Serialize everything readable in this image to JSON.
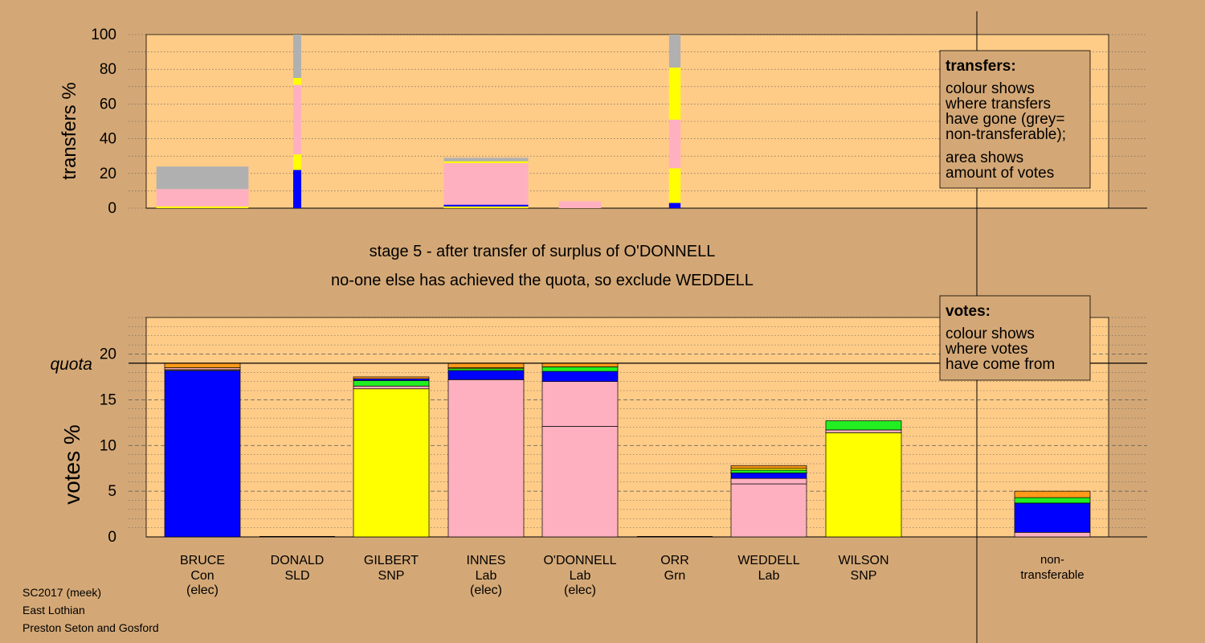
{
  "colors": {
    "background": "#d4a876",
    "panel": "#ffcc88",
    "Con": "#0000ff",
    "SNP": "#ffff00",
    "Lab": "#ffb0c0",
    "SLD": "#ff9a1a",
    "Grn": "#22ee22",
    "nontransferable": "#b0b0b0"
  },
  "stage": {
    "line1": "stage 5 - after transfer of surplus of O'DONNELL",
    "line2": "no-one else has achieved the quota, so exclude WEDDELL"
  },
  "legend_transfers": {
    "title": "transfers:",
    "lines": [
      "colour shows",
      "where transfers",
      "have gone (grey=",
      "non-transferable);"
    ],
    "lines2": [
      "area shows",
      "amount of votes"
    ]
  },
  "legend_votes": {
    "title": "votes:",
    "lines": [
      "colour shows",
      "where votes",
      "have come from"
    ]
  },
  "footer": [
    "SC2017 (meek)",
    "East Lothian",
    "Preston Seton and Gosford"
  ],
  "chart_data": [
    {
      "type": "bar",
      "stacked": true,
      "ylabel": "transfers %",
      "ylim": [
        0,
        100
      ],
      "yticks": [
        0,
        20,
        40,
        60,
        80,
        100
      ],
      "grid": true,
      "legend_position": "top-right",
      "bars": [
        {
          "candidate": "BRUCE",
          "width_share": 0.24,
          "segments": [
            {
              "party": "SNP",
              "value": 1
            },
            {
              "party": "Lab",
              "value": 10
            },
            {
              "party": "nontransferable",
              "value": 13
            }
          ]
        },
        {
          "candidate": "DONALD",
          "width_share": 0.02,
          "segments": [
            {
              "party": "Con",
              "value": 22
            },
            {
              "party": "SNP",
              "value": 9
            },
            {
              "party": "Lab",
              "value": 40
            },
            {
              "party": "SNP",
              "value": 4
            },
            {
              "party": "nontransferable",
              "value": 25
            }
          ]
        },
        {
          "candidate": "INNES",
          "width_share": 0.22,
          "segments": [
            {
              "party": "SNP",
              "value": 1
            },
            {
              "party": "Con",
              "value": 1
            },
            {
              "party": "Lab",
              "value": 24
            },
            {
              "party": "SNP",
              "value": 1
            },
            {
              "party": "nontransferable",
              "value": 2
            }
          ]
        },
        {
          "candidate": "O'DONNELL",
          "width_share": 0.11,
          "segments": [
            {
              "party": "Lab",
              "value": 4
            }
          ]
        },
        {
          "candidate": "ORR",
          "width_share": 0.03,
          "segments": [
            {
              "party": "Con",
              "value": 3
            },
            {
              "party": "SNP",
              "value": 20
            },
            {
              "party": "Lab",
              "value": 28
            },
            {
              "party": "SNP",
              "value": 30
            },
            {
              "party": "nontransferable",
              "value": 19
            }
          ]
        }
      ]
    },
    {
      "type": "bar",
      "stacked": true,
      "ylabel": "votes %",
      "ylim": [
        0,
        24
      ],
      "yticks": [
        0,
        5,
        10,
        15,
        20
      ],
      "quota": 19,
      "quota_label": "quota",
      "grid": true,
      "legend_position": "top-right",
      "categories": [
        {
          "name": "BRUCE",
          "party": "Con",
          "status": "(elec)"
        },
        {
          "name": "DONALD",
          "party": "SLD",
          "status": ""
        },
        {
          "name": "GILBERT",
          "party": "SNP",
          "status": ""
        },
        {
          "name": "INNES",
          "party": "Lab",
          "status": "(elec)"
        },
        {
          "name": "O'DONNELL",
          "party": "Lab",
          "status": "(elec)"
        },
        {
          "name": "ORR",
          "party": "Grn",
          "status": ""
        },
        {
          "name": "WEDDELL",
          "party": "Lab",
          "status": ""
        },
        {
          "name": "WILSON",
          "party": "SNP",
          "status": ""
        }
      ],
      "nontransferable_label": [
        "non-",
        "transferable"
      ],
      "bars": [
        {
          "candidate": "BRUCE",
          "segments": [
            {
              "party": "Con",
              "value": 18.2
            },
            {
              "party": "SNP",
              "value": 0.1
            },
            {
              "party": "Lab",
              "value": 0.2
            },
            {
              "party": "SLD",
              "value": 0.5
            }
          ]
        },
        {
          "candidate": "DONALD",
          "segments": []
        },
        {
          "candidate": "GILBERT",
          "segments": [
            {
              "party": "SNP",
              "value": 16.2
            },
            {
              "party": "Lab",
              "value": 0.3
            },
            {
              "party": "Grn",
              "value": 0.6
            },
            {
              "party": "Con",
              "value": 0.2
            },
            {
              "party": "SLD",
              "value": 0.2
            }
          ]
        },
        {
          "candidate": "INNES",
          "segments": [
            {
              "party": "Lab",
              "value": 17.2
            },
            {
              "party": "Con",
              "value": 1.0
            },
            {
              "party": "Grn",
              "value": 0.2
            },
            {
              "party": "SNP",
              "value": 0.1
            },
            {
              "party": "SLD",
              "value": 0.5
            }
          ]
        },
        {
          "candidate": "O'DONNELL",
          "segments": [
            {
              "party": "Lab",
              "value": 12.1
            },
            {
              "party": "Lab",
              "value": 4.9
            },
            {
              "party": "Con",
              "value": 1.1
            },
            {
              "party": "Grn",
              "value": 0.5
            },
            {
              "party": "SLD",
              "value": 0.4
            }
          ]
        },
        {
          "candidate": "ORR",
          "segments": []
        },
        {
          "candidate": "WEDDELL",
          "segments": [
            {
              "party": "Lab",
              "value": 5.8
            },
            {
              "party": "Lab",
              "value": 0.6
            },
            {
              "party": "Con",
              "value": 0.6
            },
            {
              "party": "Grn",
              "value": 0.3
            },
            {
              "party": "SNP",
              "value": 0.2
            },
            {
              "party": "SLD",
              "value": 0.3
            }
          ]
        },
        {
          "candidate": "WILSON",
          "segments": [
            {
              "party": "SNP",
              "value": 11.4
            },
            {
              "party": "Lab",
              "value": 0.3
            },
            {
              "party": "Grn",
              "value": 1.0
            }
          ]
        },
        {
          "candidate": "non-transferable",
          "segments": [
            {
              "party": "Lab",
              "value": 0.5
            },
            {
              "party": "Con",
              "value": 3.2
            },
            {
              "party": "Grn",
              "value": 0.6
            },
            {
              "party": "SLD",
              "value": 0.7
            }
          ]
        }
      ]
    }
  ]
}
